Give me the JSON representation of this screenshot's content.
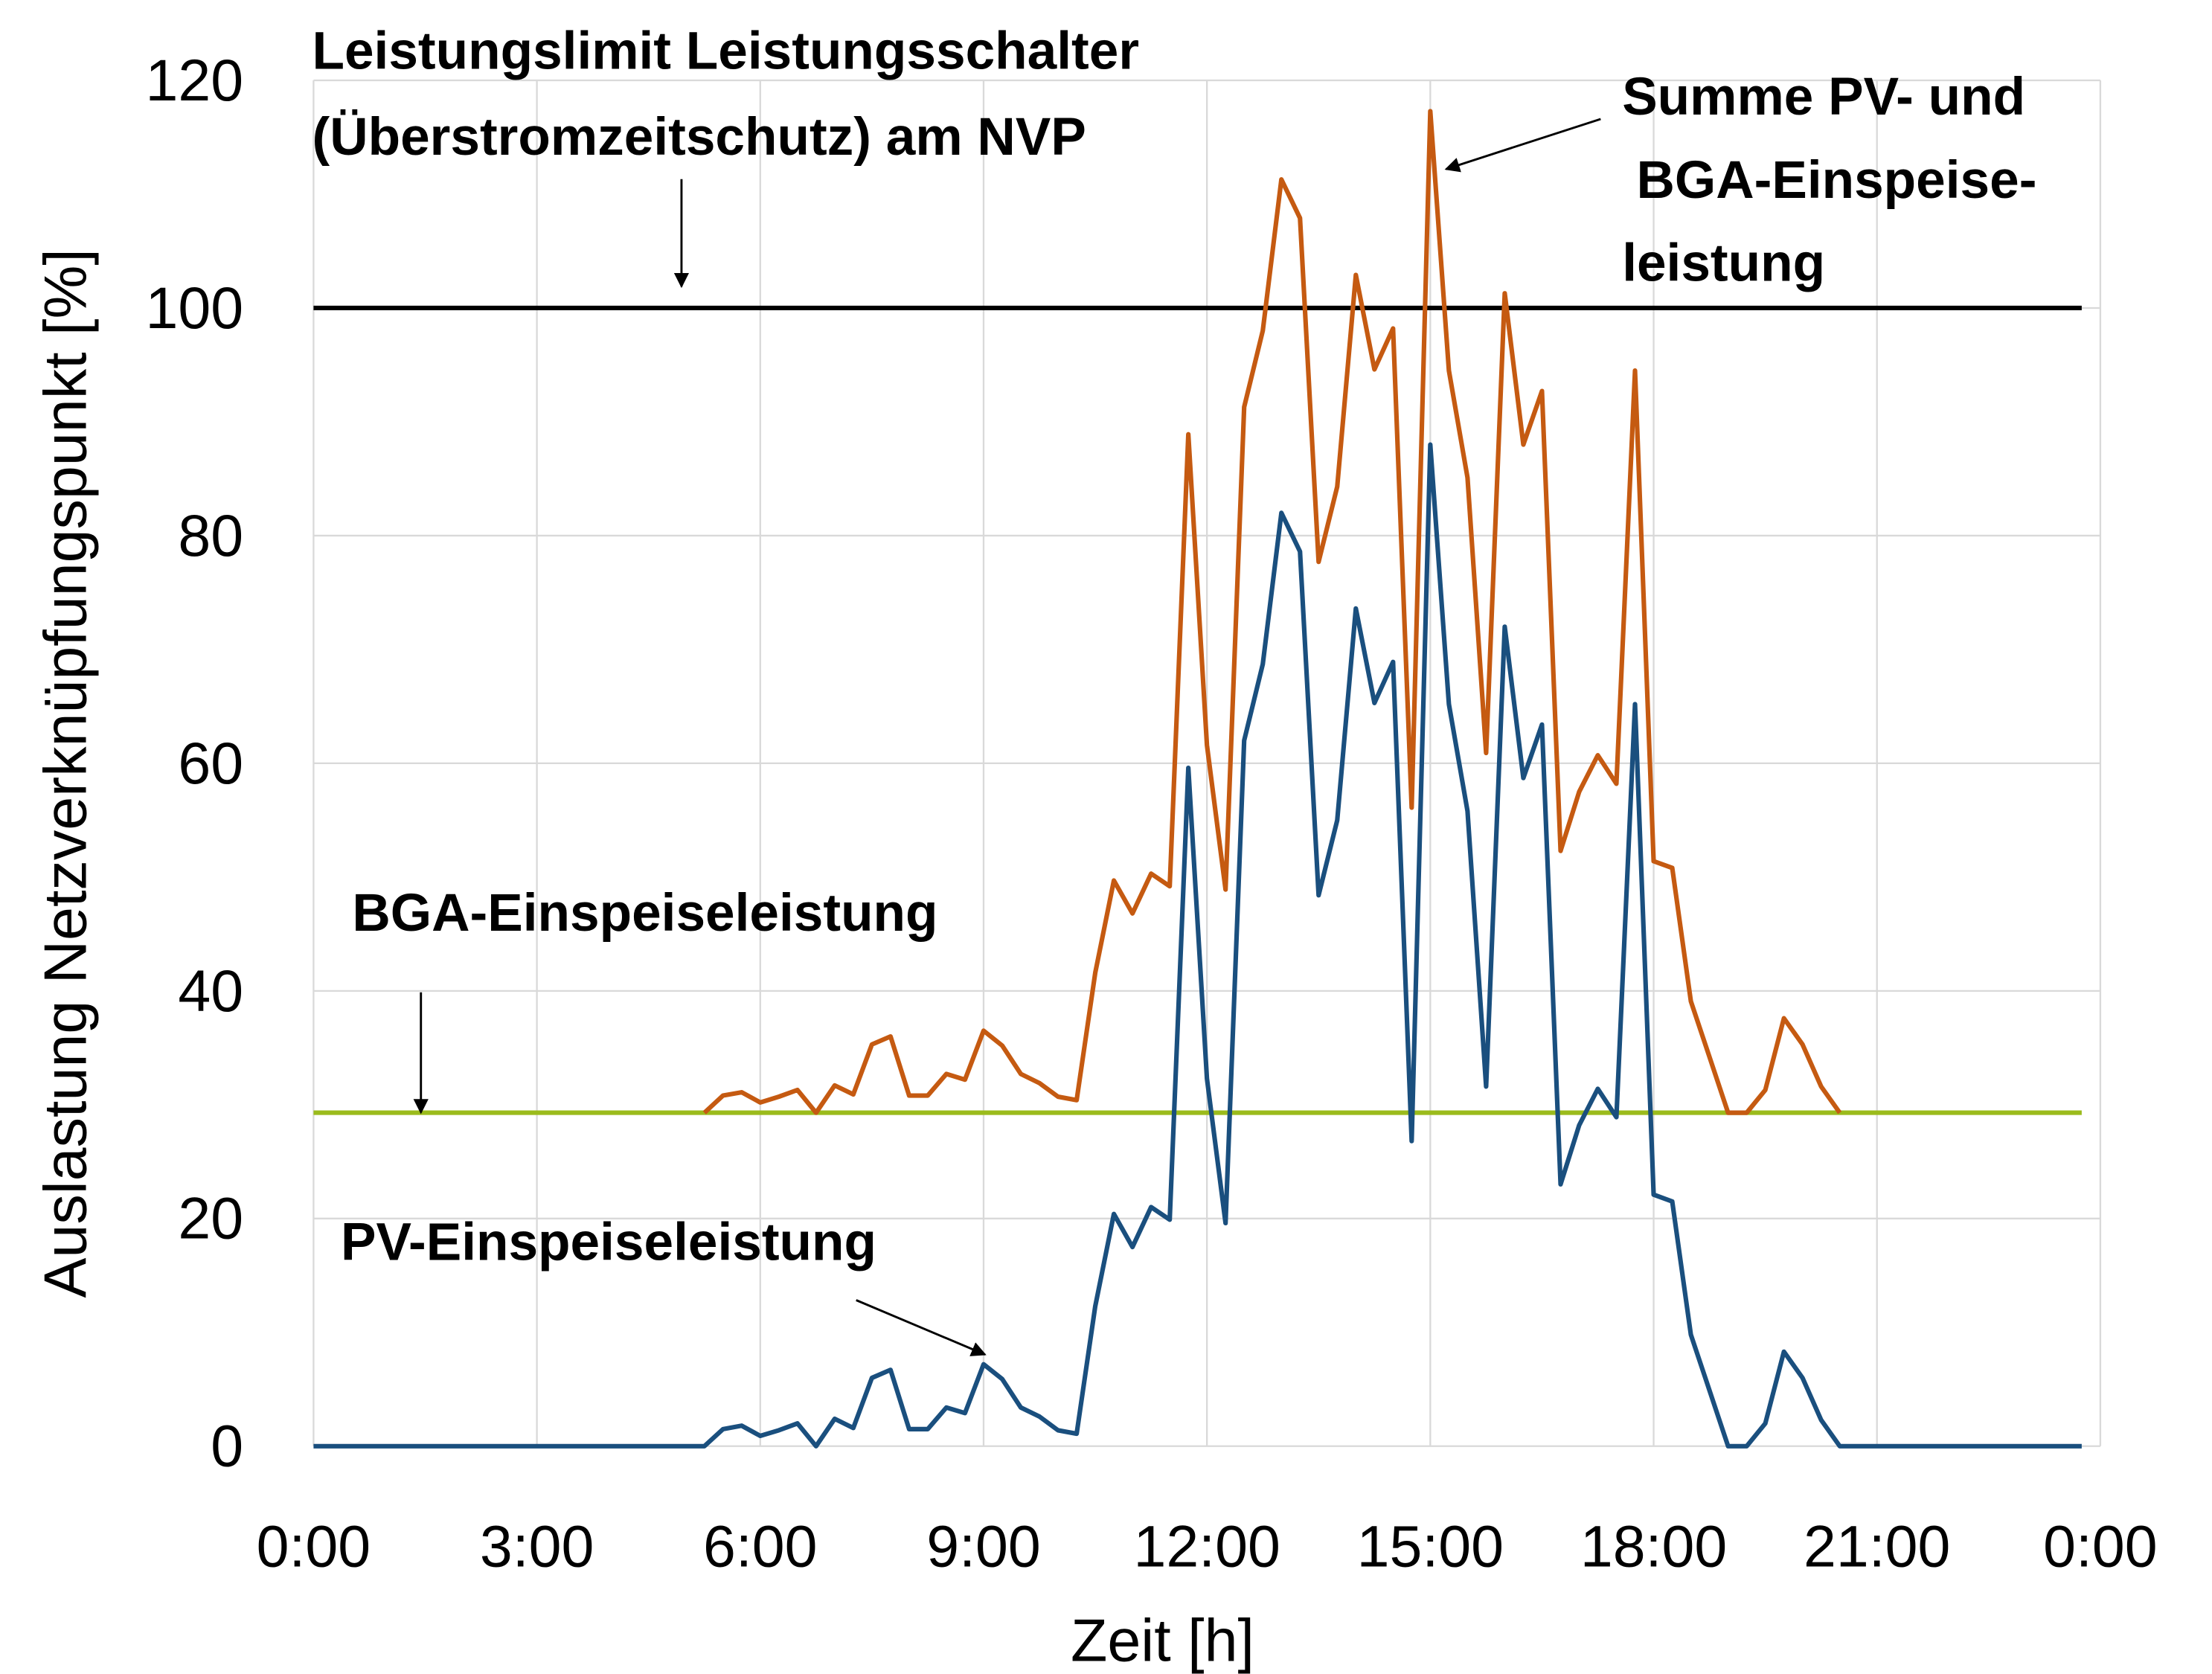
{
  "chart_data": {
    "type": "line",
    "title": "",
    "xlabel": "Zeit [h]",
    "ylabel": "Auslastung Netzverknüpfungspunkt [%]",
    "xlim_hours": [
      0,
      24
    ],
    "ylim": [
      0,
      120
    ],
    "grid": true,
    "x_tick_labels": [
      "0:00",
      "3:00",
      "6:00",
      "9:00",
      "12:00",
      "15:00",
      "18:00",
      "21:00",
      "0:00"
    ],
    "y_tick_labels": [
      "0",
      "20",
      "40",
      "60",
      "80",
      "100",
      "120"
    ],
    "x_step_hours": 0.25,
    "series": [
      {
        "name": "PV-Einspeiseleistung",
        "color": "#1A4F7E",
        "start_hour": 0,
        "values": [
          0,
          0,
          0,
          0,
          0,
          0,
          0,
          0,
          0,
          0,
          0,
          0,
          0,
          0,
          0,
          0,
          0,
          0,
          0,
          0,
          0,
          0,
          1.5,
          1.8,
          0.9,
          1.4,
          2.0,
          0,
          2.4,
          1.6,
          6.0,
          6.7,
          1.5,
          1.5,
          3.4,
          2.9,
          7.2,
          5.9,
          3.4,
          2.6,
          1.4,
          1.1,
          12.3,
          20.4,
          17.5,
          21.0,
          19.9,
          59.6,
          32.3,
          19.6,
          62,
          68.7,
          82,
          78.6,
          48.4,
          55,
          73.6,
          65.3,
          68.9,
          26.8,
          88,
          65.2,
          55.8,
          31.6,
          72,
          58.7,
          63.4,
          23,
          28.2,
          31.4,
          28.9,
          65.2,
          22.1,
          21.5,
          9.8,
          4.9,
          0,
          0,
          2,
          8.3,
          6,
          2.3,
          0,
          0,
          0,
          0,
          0,
          0,
          0,
          0,
          0,
          0,
          0,
          0,
          0,
          0
        ]
      },
      {
        "name": "Summe PV- und BGA-Einspeiseleistung",
        "color": "#C55A11",
        "start_hour": 5.25,
        "values": [
          29.3,
          30.8,
          31.1,
          30.2,
          30.7,
          31.3,
          29.3,
          31.7,
          30.9,
          35.3,
          36.0,
          30.8,
          30.8,
          32.7,
          32.2,
          36.5,
          35.2,
          32.7,
          31.9,
          30.7,
          30.4,
          41.6,
          49.7,
          46.8,
          50.3,
          49.2,
          88.9,
          61.6,
          48.9,
          91.3,
          98.0,
          111.3,
          107.9,
          77.7,
          84.3,
          102.9,
          94.6,
          98.2,
          56.1,
          117.3,
          94.5,
          85.1,
          60.9,
          101.3,
          88.0,
          92.7,
          52.3,
          57.5,
          60.7,
          58.2,
          94.5,
          51.4,
          50.8,
          39.1,
          34.2,
          29.3,
          29.3,
          31.3,
          37.6,
          35.3,
          31.6,
          29.3
        ]
      },
      {
        "name": "BGA-Einspeiseleistung",
        "color": "#9BBB1C",
        "constant": 29.3,
        "range_hours": [
          0,
          23.75
        ]
      },
      {
        "name": "Leistungslimit",
        "color": "#000000",
        "constant": 100,
        "range_hours": [
          0,
          23.75
        ]
      }
    ],
    "annotations": {
      "limit_line1": "Leistungslimit Leistungsschalter",
      "limit_line2": "(Überstromzeitschutz) am NVP",
      "sum_line1": "Summe PV- und",
      "sum_line2": "BGA-Einspeise-",
      "sum_line3": "leistung",
      "bga": "BGA-Einspeiseleistung",
      "pv": "PV-Einspeiseleistung"
    }
  }
}
